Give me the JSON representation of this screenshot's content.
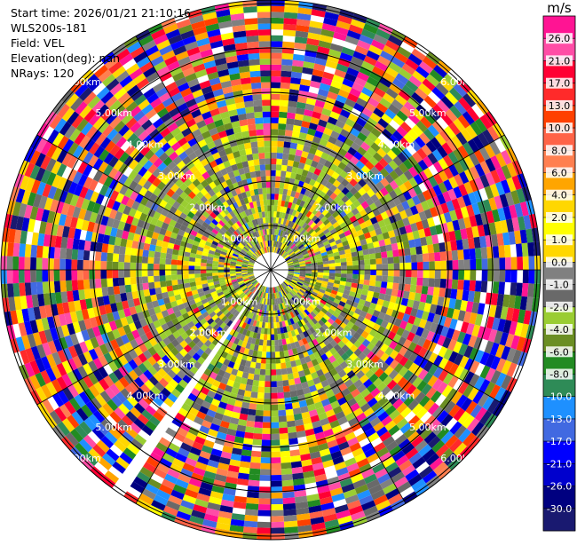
{
  "header": {
    "start_time": "Start time: 2026/01/21 21:10:16",
    "instrument": "WLS200s-181",
    "field": "Field: VEL",
    "elevation": "Elevation(deg): nan",
    "nrays": "NRays: 120"
  },
  "chart_data": {
    "type": "ppi",
    "field": "VEL",
    "nrays": 120,
    "range_rings_km": [
      1,
      2,
      3,
      4,
      5,
      6
    ],
    "ring_labels": [
      "1.00km",
      "2.00km",
      "3.00km",
      "4.00km",
      "5.00km",
      "6.00km"
    ],
    "gap_azimuth_deg": [
      213,
      216
    ],
    "colorbar": {
      "unit": "m/s",
      "ticks": [
        "26.0",
        "21.0",
        "17.0",
        "13.0",
        "10.0",
        "8.0",
        "6.0",
        "4.0",
        "2.0",
        "1.0",
        "0.0",
        "-1.0",
        "-2.0",
        "-4.0",
        "-6.0",
        "-8.0",
        "-10.0",
        "-13.0",
        "-17.0",
        "-21.0",
        "-26.0",
        "-30.0"
      ],
      "colors": [
        "#ff1493",
        "#ff4da6",
        "#ff0033",
        "#ff2a2a",
        "#ff4000",
        "#ff6347",
        "#ff7f50",
        "#ffa500",
        "#ffd700",
        "#ffff00",
        "#ffd700",
        "#808080",
        "#696969",
        "#9acd32",
        "#6b8e23",
        "#228b22",
        "#2e8b57",
        "#1e90ff",
        "#4169e1",
        "#0000ff",
        "#0000cd",
        "#000080",
        "#191970"
      ]
    }
  }
}
